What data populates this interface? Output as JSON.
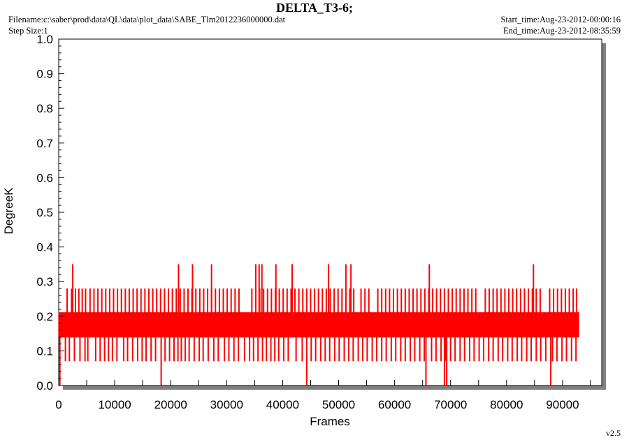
{
  "header": {
    "title": "DELTA_T3-6;",
    "filename": "Filename:c:\\saber\\prod\\data\\QL\\data\\plot_data\\SABE_Tlm2012236000000.dat",
    "step_size": "Step Size:1",
    "start_time": "Start_time:Aug-23-2012-00:00:16",
    "end_time": "End_time:Aug-23-2012-08:35:59"
  },
  "footer": {
    "version": "v2.5"
  },
  "colors": {
    "series": "#ff0000",
    "axis": "#000000",
    "shadow": "#808080"
  },
  "chart_data": {
    "type": "line",
    "title": "DELTA_T3-6;",
    "xlabel": "Frames",
    "ylabel": "DegreeK",
    "xlim": [
      0,
      97000
    ],
    "ylim": [
      0.0,
      1.0
    ],
    "x_ticks": [
      0,
      10000,
      20000,
      30000,
      40000,
      50000,
      60000,
      70000,
      80000,
      90000
    ],
    "x_tick_labels": [
      "0",
      "10000",
      "20000",
      "30000",
      "40000",
      "50000",
      "60000",
      "70000",
      "80000",
      "90000"
    ],
    "y_ticks": [
      0.0,
      0.1,
      0.2,
      0.3,
      0.4,
      0.5,
      0.6,
      0.7,
      0.8,
      0.9,
      1.0
    ],
    "y_tick_labels": [
      "0.0",
      "0.1",
      "0.2",
      "0.3",
      "0.4",
      "0.5",
      "0.6",
      "0.7",
      "0.8",
      "0.9",
      "1.0"
    ],
    "grid": false,
    "series": [
      {
        "x_range": [
          0,
          93000
        ],
        "levels": [
          0.0,
          0.07,
          0.14,
          0.21,
          0.28,
          0.35
        ],
        "band": [
          0.14,
          0.21
        ],
        "upper_spikes_0_28": [
          1500,
          2300,
          3000,
          3600,
          4200,
          4800,
          5600,
          6300,
          7000,
          7700,
          8400,
          9100,
          9800,
          10500,
          11200,
          11900,
          12600,
          13300,
          14000,
          14700,
          15400,
          16100,
          16800,
          17500,
          18200,
          18900,
          19600,
          20300,
          21000,
          21700,
          22400,
          23100,
          23800,
          24500,
          25200,
          25900,
          26600,
          27300,
          28000,
          28700,
          29400,
          30100,
          30800,
          31500,
          32200,
          34500,
          35200,
          35900,
          36600,
          37300,
          38000,
          38700,
          39400,
          40100,
          40800,
          41500,
          42200,
          42900,
          43600,
          44300,
          45000,
          45700,
          46400,
          47100,
          47800,
          48500,
          49200,
          49900,
          50600,
          51300,
          52000,
          52700,
          54000,
          54700,
          55400,
          57000,
          57700,
          58400,
          59100,
          59800,
          60500,
          61200,
          61900,
          62600,
          63300,
          64000,
          64700,
          65400,
          66100,
          66800,
          67500,
          68200,
          68900,
          69600,
          70300,
          71000,
          71700,
          72400,
          73100,
          73800,
          74500,
          76200,
          76900,
          77600,
          78300,
          79000,
          79700,
          80400,
          81100,
          81800,
          82500,
          83200,
          83900,
          84600,
          85300,
          86000,
          87700,
          88400,
          89100,
          89800,
          90500,
          91200,
          91900,
          92500
        ],
        "upper_spikes_0_35": [
          2500,
          21400,
          23900,
          27300,
          35200,
          35800,
          36300,
          38800,
          41700,
          48200,
          51300,
          52200,
          66200,
          84800
        ],
        "lower_spikes_0_07": [
          1200,
          1900,
          2800,
          3800,
          4700,
          5200,
          6600,
          7400,
          8200,
          8900,
          9600,
          10400,
          11600,
          12300,
          13200,
          14100,
          14900,
          15600,
          16500,
          17300,
          19000,
          19800,
          20600,
          21300,
          21900,
          22600,
          23300,
          24200,
          25100,
          25800,
          26700,
          27700,
          28500,
          29600,
          30400,
          31300,
          32100,
          33200,
          34100,
          34800,
          35600,
          36400,
          37100,
          37900,
          38600,
          39300,
          40200,
          41000,
          42400,
          43500,
          45100,
          45900,
          46800,
          47600,
          48400,
          49300,
          50100,
          51000,
          51800,
          52600,
          53500,
          54300,
          55100,
          56000,
          56800,
          57700,
          58500,
          59400,
          60200,
          61100,
          61900,
          62800,
          63600,
          64500,
          65300,
          66600,
          67400,
          68300,
          69100,
          70000,
          70800,
          71700,
          72500,
          73400,
          74200,
          75100,
          75900,
          76800,
          77600,
          78500,
          79300,
          80200,
          81000,
          81900,
          82700,
          83600,
          84400,
          85300,
          86100,
          87000,
          88200,
          89000,
          89900,
          90700,
          91600,
          92400
        ],
        "lower_spikes_0_0": [
          200,
          18300,
          44300,
          65600,
          68900,
          69300,
          87900
        ]
      }
    ]
  }
}
